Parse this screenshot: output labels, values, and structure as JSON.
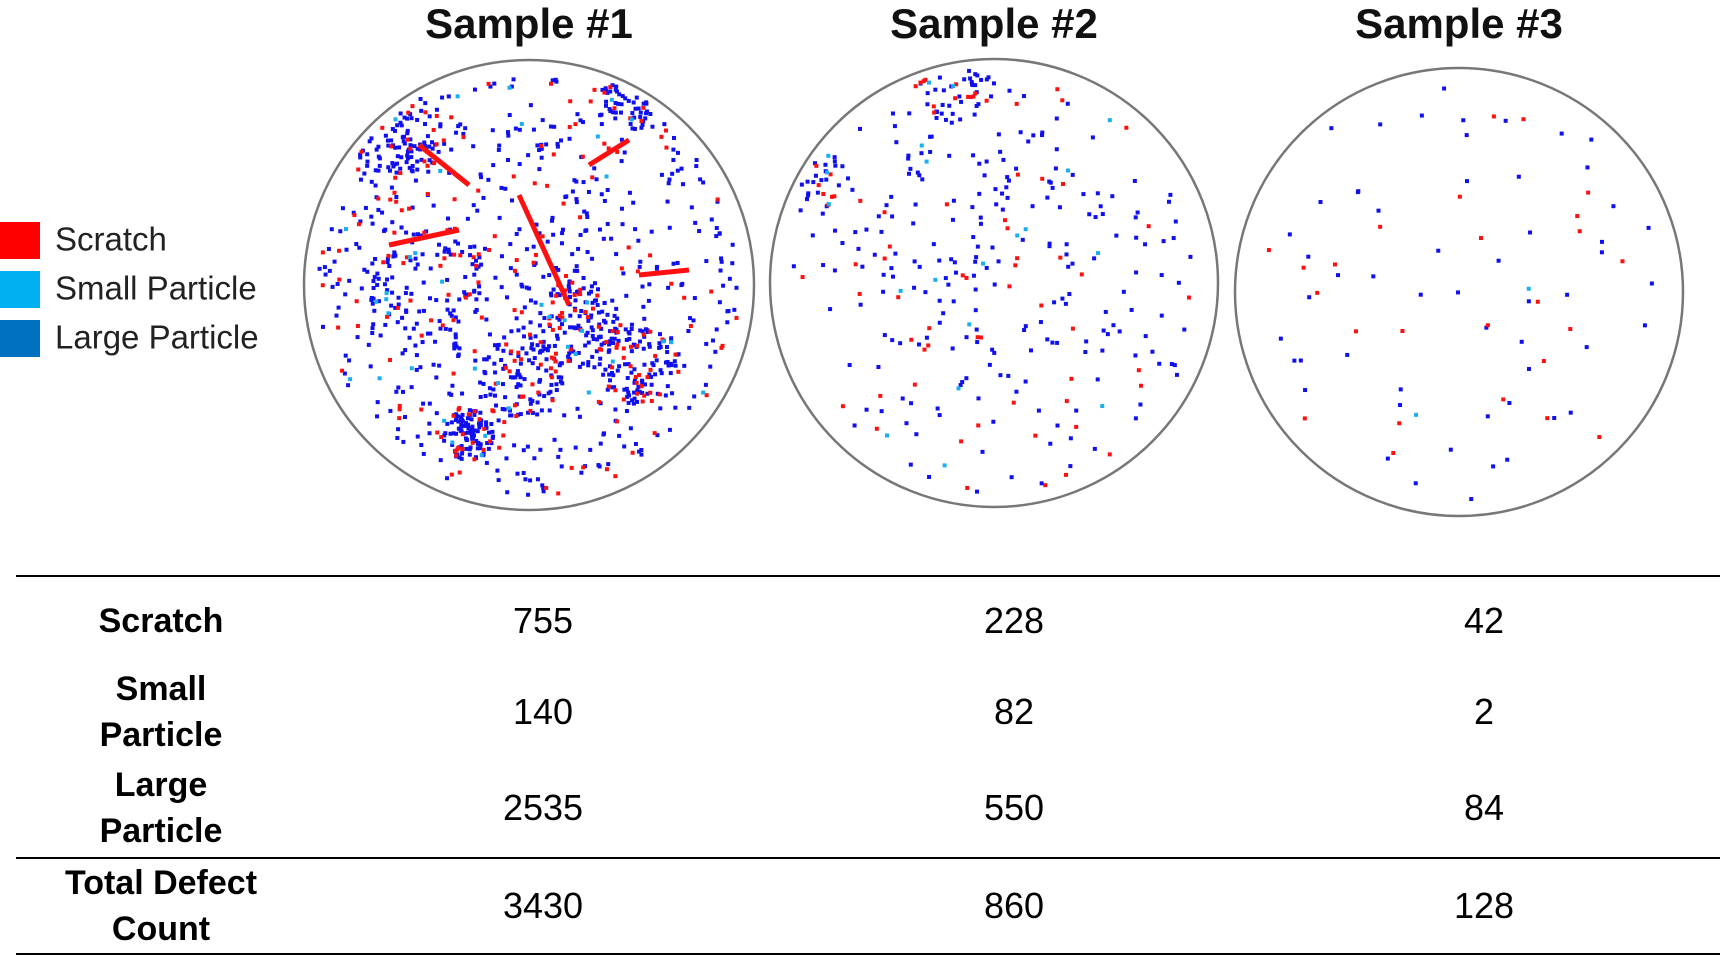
{
  "titles": [
    "Sample #1",
    "Sample #2",
    "Sample #3"
  ],
  "legend": [
    {
      "label": "Scratch",
      "color": "#ff0000"
    },
    {
      "label": "Small Particle",
      "color": "#00b0f0"
    },
    {
      "label": "Large Particle",
      "color": "#0070c0"
    }
  ],
  "table": {
    "rows": [
      {
        "label": "Scratch",
        "values": [
          755,
          228,
          42
        ]
      },
      {
        "label": "Small Particle",
        "values": [
          140,
          82,
          2
        ]
      },
      {
        "label": "Large Particle",
        "values": [
          2535,
          550,
          84
        ]
      },
      {
        "label": "Total Defect Count",
        "values": [
          3430,
          860,
          128
        ]
      }
    ]
  }
}
